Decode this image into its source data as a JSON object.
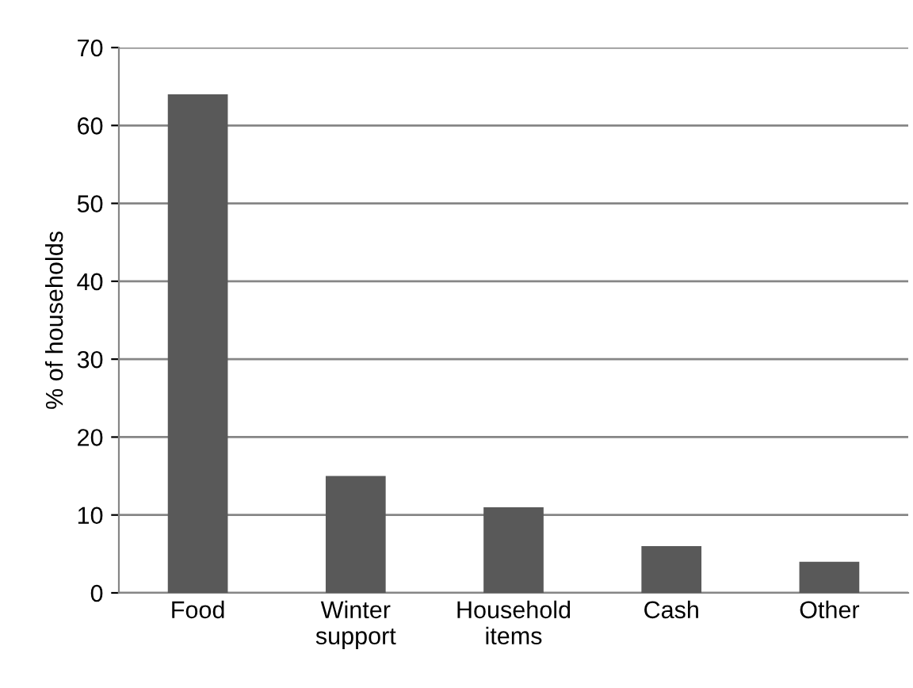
{
  "chart_data": {
    "type": "bar",
    "ylabel": "% of households",
    "categories": [
      "Food",
      "Winter\nsupport",
      "Household\nitems",
      "Cash",
      "Other"
    ],
    "values": [
      64,
      15,
      11,
      6,
      4
    ],
    "color": "#595959",
    "ylim": [
      0,
      70
    ],
    "yticks": [
      0,
      10,
      20,
      30,
      40,
      50,
      60,
      70
    ],
    "grid": "y"
  }
}
